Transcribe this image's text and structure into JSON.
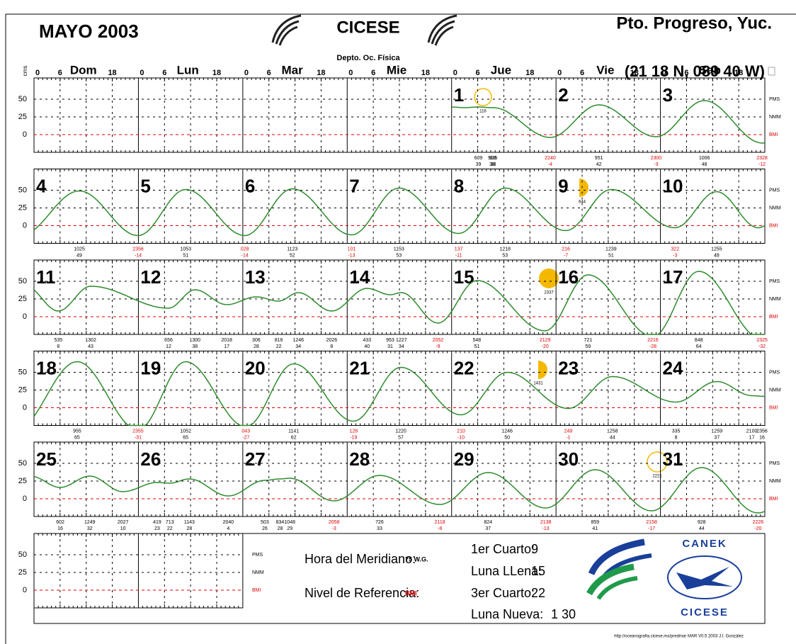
{
  "header": {
    "title": "MAYO 2003",
    "institution": "CICESE",
    "department": "Depto. Oc. Física",
    "location": "Pto. Progreso, Yuc.",
    "coordinates": "(21 18 N, 089 40 W)",
    "units": "cms"
  },
  "day_header": {
    "hours": [
      "0",
      "6",
      "18"
    ],
    "days": [
      "Dom",
      "Lun",
      "Mar",
      "Mie",
      "Jue",
      "Vie",
      "Sab"
    ]
  },
  "axis": {
    "yticks": [
      50,
      25,
      0
    ],
    "levels": [
      "PMS",
      "NMM",
      "BMI"
    ]
  },
  "weeks": [
    {
      "days": [
        null,
        null,
        null,
        null,
        1,
        2,
        3
      ],
      "extremes": [
        {
          "time": "609",
          "height": 39
        },
        {
          "time": "918",
          "height": 38
        },
        {
          "time": "935",
          "height": 38
        },
        {
          "time": "2240",
          "height": -4
        },
        {
          "time": "951",
          "height": 42
        },
        {
          "time": "2300",
          "height": -3
        },
        {
          "time": "1006",
          "height": 48
        },
        {
          "time": "2328",
          "height": -12
        }
      ]
    },
    {
      "days": [
        4,
        5,
        6,
        7,
        8,
        9,
        10
      ],
      "extremes": [
        {
          "time": "1025",
          "height": 49
        },
        {
          "time": "2356",
          "height": -14
        },
        {
          "time": "1053",
          "height": 51
        },
        {
          "time": "028",
          "height": -14
        },
        {
          "time": "1123",
          "height": 52
        },
        {
          "time": "101",
          "height": -13
        },
        {
          "time": "1153",
          "height": 53
        },
        {
          "time": "137",
          "height": -11
        },
        {
          "time": "1218",
          "height": 53
        },
        {
          "time": "216",
          "height": -7
        },
        {
          "time": "1239",
          "height": 51
        },
        {
          "time": "322",
          "height": -3
        },
        {
          "time": "1255",
          "height": 48
        }
      ]
    },
    {
      "days": [
        11,
        12,
        13,
        14,
        15,
        16,
        17
      ],
      "extremes": [
        {
          "time": "535",
          "height": 8
        },
        {
          "time": "1302",
          "height": 43
        },
        {
          "time": "656",
          "height": 12
        },
        {
          "time": "1300",
          "height": 38
        },
        {
          "time": "2018",
          "height": 17
        },
        {
          "time": "306",
          "height": 28
        },
        {
          "time": "816",
          "height": 22
        },
        {
          "time": "1246",
          "height": 34
        },
        {
          "time": "2026",
          "height": 8
        },
        {
          "time": "433",
          "height": 40
        },
        {
          "time": "953",
          "height": 31
        },
        {
          "time": "1227",
          "height": 34
        },
        {
          "time": "2052",
          "height": -9
        },
        {
          "time": "548",
          "height": 51
        },
        {
          "time": "2129",
          "height": -20
        },
        {
          "time": "721",
          "height": 59
        },
        {
          "time": "2216",
          "height": -28
        },
        {
          "time": "848",
          "height": 64
        },
        {
          "time": "2325",
          "height": -32
        }
      ]
    },
    {
      "days": [
        18,
        19,
        20,
        21,
        22,
        23,
        24
      ],
      "extremes": [
        {
          "time": "955",
          "height": 65
        },
        {
          "time": "2355",
          "height": -31
        },
        {
          "time": "1052",
          "height": 65
        },
        {
          "time": "043",
          "height": -27
        },
        {
          "time": "1141",
          "height": 62
        },
        {
          "time": "128",
          "height": -19
        },
        {
          "time": "1220",
          "height": 57
        },
        {
          "time": "210",
          "height": -10
        },
        {
          "time": "1246",
          "height": 50
        },
        {
          "time": "249",
          "height": -1
        },
        {
          "time": "1258",
          "height": 44
        },
        {
          "time": "335",
          "height": 8
        },
        {
          "time": "1259",
          "height": 37
        },
        {
          "time": "2100",
          "height": 17
        },
        {
          "time": "2356",
          "height": 16
        }
      ]
    },
    {
      "days": [
        25,
        26,
        27,
        28,
        29,
        30,
        31
      ],
      "extremes": [
        {
          "time": "602",
          "height": 16
        },
        {
          "time": "1249",
          "height": 32
        },
        {
          "time": "2027",
          "height": 10
        },
        {
          "time": "419",
          "height": 23
        },
        {
          "time": "713",
          "height": 22
        },
        {
          "time": "1143",
          "height": 28
        },
        {
          "time": "2040",
          "height": 4
        },
        {
          "time": "503",
          "height": 26
        },
        {
          "time": "834",
          "height": 28
        },
        {
          "time": "1048",
          "height": 29
        },
        {
          "time": "2058",
          "height": -3
        },
        {
          "time": "726",
          "height": 33
        },
        {
          "time": "2118",
          "height": -8
        },
        {
          "time": "824",
          "height": 37
        },
        {
          "time": "2138",
          "height": -13
        },
        {
          "time": "859",
          "height": 41
        },
        {
          "time": "2158",
          "height": -17
        },
        {
          "time": "928",
          "height": 44
        },
        {
          "time": "2226",
          "height": -20
        }
      ]
    }
  ],
  "moons": [
    {
      "label": "116"
    },
    {
      "label": "644"
    },
    {
      "label": "2337"
    },
    {
      "label": "1431"
    },
    {
      "label": "2221"
    }
  ],
  "legend": {
    "meridian_label": "Hora del Meridiano:",
    "meridian_value": "75 W.G.",
    "reference_label": "Nivel de Referencia:",
    "reference_value": "BMI",
    "phases": [
      {
        "name": "1er Cuarto:",
        "days": "9"
      },
      {
        "name": "Luna LLena:",
        "days": "15"
      },
      {
        "name": "3er Cuarto:",
        "days": "22"
      },
      {
        "name": "Luna Nueva:",
        "days": "1 30"
      }
    ],
    "logo_top": "CANEK",
    "logo_bottom": "CICESE"
  },
  "footer": "http://oceanografia.cicese.mx/predmar  MAR V0.5 2003 J.I. González"
}
